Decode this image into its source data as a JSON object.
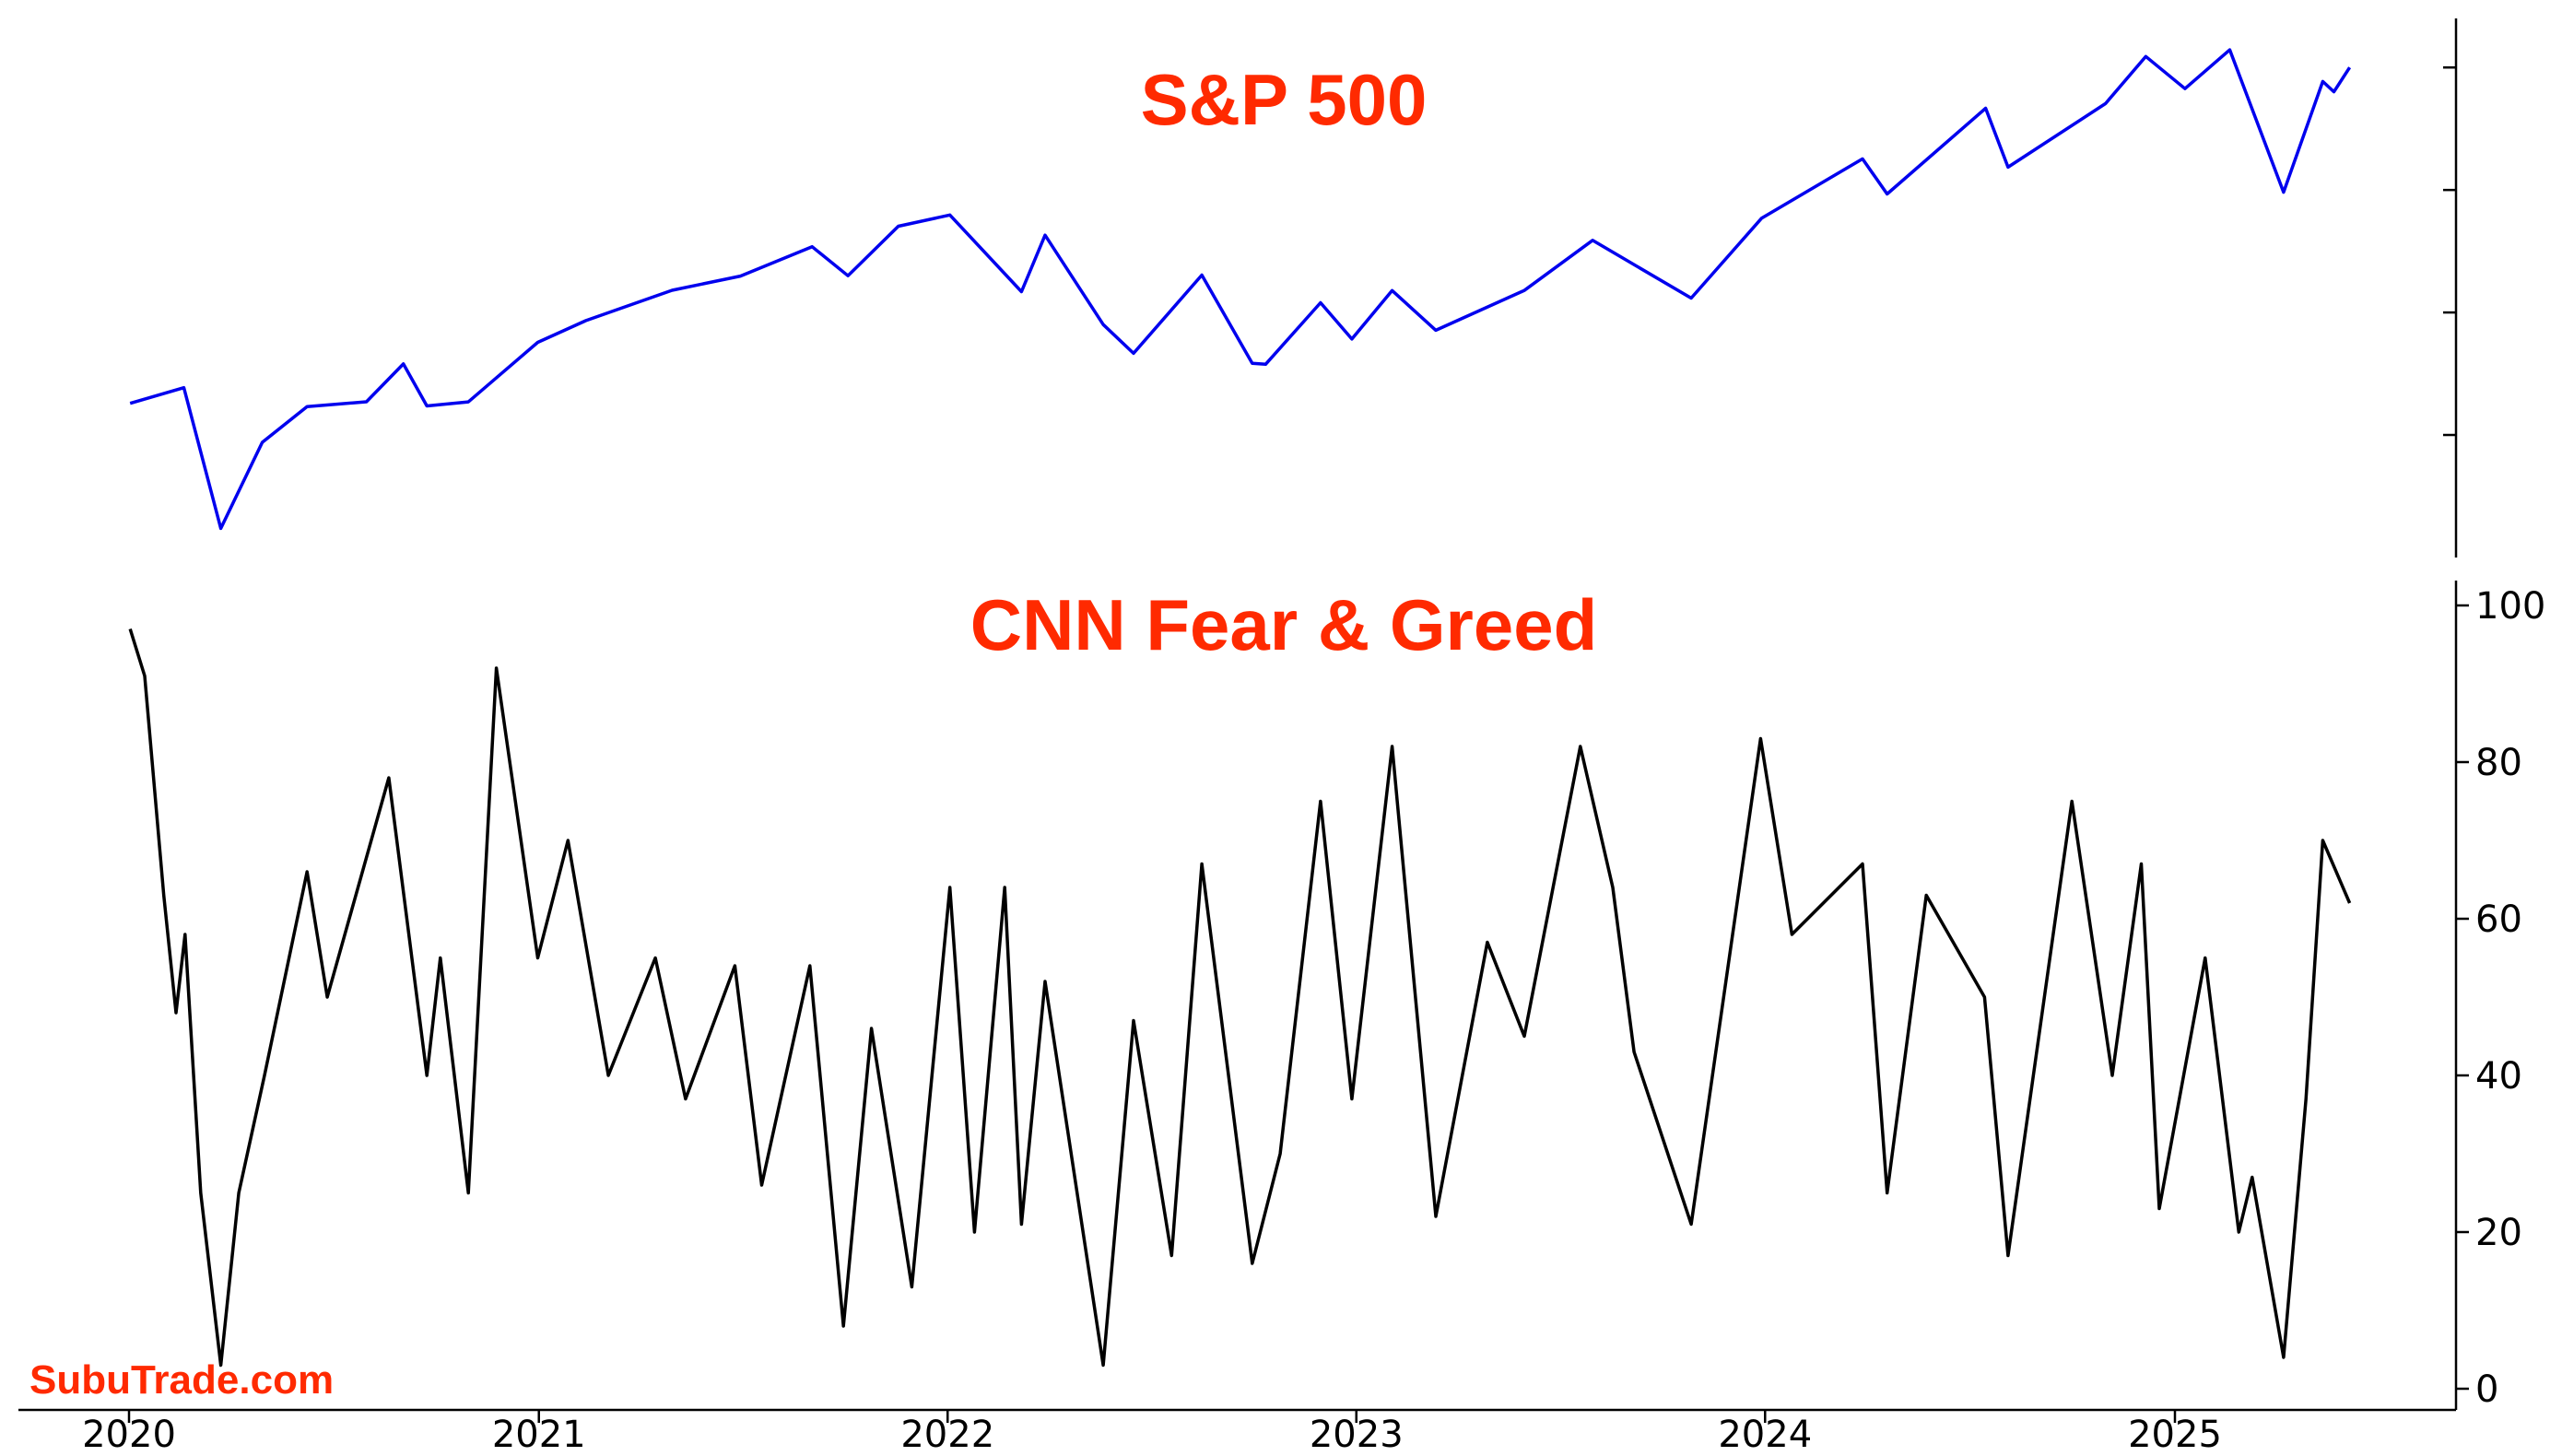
{
  "watermark": "SubuTrade.com",
  "colors": {
    "title": "#ff2a00",
    "sp500_line": "#0000ee",
    "fg_line": "#000000",
    "watermark": "#ff2a00"
  },
  "x_axis": {
    "range": [
      "2020-01-01",
      "2025-08-01"
    ],
    "ticks": [
      {
        "date": "2020-01-01",
        "label": "2020"
      },
      {
        "date": "2021-01-01",
        "label": "2021"
      },
      {
        "date": "2022-01-01",
        "label": "2022"
      },
      {
        "date": "2023-01-01",
        "label": "2023"
      },
      {
        "date": "2024-01-01",
        "label": "2024"
      },
      {
        "date": "2025-01-01",
        "label": "2025"
      }
    ]
  },
  "chart_data": [
    {
      "type": "line",
      "title": "S&P 500",
      "y_axis_side": "right",
      "y_tick_labels_shown": false,
      "ylim": [
        2150,
        6250
      ],
      "y_ticks": [
        3000,
        4000,
        5000,
        6000
      ],
      "series": [
        {
          "color": "#0000ee",
          "points": [
            [
              "2020-01-02",
              3258
            ],
            [
              "2020-02-19",
              3386
            ],
            [
              "2020-03-23",
              2237
            ],
            [
              "2020-04-29",
              2940
            ],
            [
              "2020-06-08",
              3232
            ],
            [
              "2020-07-31",
              3271
            ],
            [
              "2020-09-02",
              3580
            ],
            [
              "2020-09-23",
              3237
            ],
            [
              "2020-10-30",
              3270
            ],
            [
              "2020-12-31",
              3756
            ],
            [
              "2021-02-12",
              3934
            ],
            [
              "2021-04-30",
              4181
            ],
            [
              "2021-06-30",
              4297
            ],
            [
              "2021-09-02",
              4537
            ],
            [
              "2021-10-04",
              4300
            ],
            [
              "2021-11-18",
              4704
            ],
            [
              "2022-01-03",
              4796
            ],
            [
              "2022-03-08",
              4170
            ],
            [
              "2022-03-29",
              4631
            ],
            [
              "2022-05-20",
              3901
            ],
            [
              "2022-06-16",
              3667
            ],
            [
              "2022-08-16",
              4305
            ],
            [
              "2022-09-30",
              3585
            ],
            [
              "2022-10-12",
              3577
            ],
            [
              "2022-11-30",
              4080
            ],
            [
              "2022-12-28",
              3783
            ],
            [
              "2023-02-02",
              4179
            ],
            [
              "2023-03-13",
              3855
            ],
            [
              "2023-05-31",
              4180
            ],
            [
              "2023-07-31",
              4589
            ],
            [
              "2023-10-27",
              4117
            ],
            [
              "2023-12-29",
              4770
            ],
            [
              "2024-03-28",
              5254
            ],
            [
              "2024-04-19",
              4967
            ],
            [
              "2024-07-16",
              5667
            ],
            [
              "2024-08-05",
              5186
            ],
            [
              "2024-10-31",
              5705
            ],
            [
              "2024-12-06",
              6090
            ],
            [
              "2025-01-10",
              5827
            ],
            [
              "2025-02-19",
              6144
            ],
            [
              "2025-04-08",
              4982
            ],
            [
              "2025-05-13",
              5886
            ],
            [
              "2025-05-23",
              5802
            ],
            [
              "2025-06-06",
              6000
            ]
          ]
        }
      ]
    },
    {
      "type": "line",
      "title": "CNN Fear & Greed",
      "y_axis_side": "right",
      "ylim": [
        -2,
        102
      ],
      "y_ticks": [
        0,
        20,
        40,
        60,
        80,
        100
      ],
      "y_tick_labels": [
        "0",
        "20",
        "40",
        "60",
        "80",
        "100"
      ],
      "series": [
        {
          "color": "#000000",
          "points": [
            [
              "2020-01-02",
              97
            ],
            [
              "2020-01-15",
              91
            ],
            [
              "2020-02-01",
              63
            ],
            [
              "2020-02-12",
              48
            ],
            [
              "2020-02-20",
              58
            ],
            [
              "2020-03-05",
              25
            ],
            [
              "2020-03-23",
              3
            ],
            [
              "2020-04-08",
              25
            ],
            [
              "2020-05-01",
              40
            ],
            [
              "2020-06-08",
              66
            ],
            [
              "2020-06-26",
              50
            ],
            [
              "2020-08-20",
              78
            ],
            [
              "2020-09-23",
              40
            ],
            [
              "2020-10-05",
              55
            ],
            [
              "2020-10-30",
              25
            ],
            [
              "2020-11-24",
              92
            ],
            [
              "2020-12-31",
              55
            ],
            [
              "2021-01-27",
              70
            ],
            [
              "2021-03-04",
              40
            ],
            [
              "2021-04-15",
              55
            ],
            [
              "2021-05-12",
              37
            ],
            [
              "2021-06-25",
              54
            ],
            [
              "2021-07-19",
              26
            ],
            [
              "2021-08-31",
              54
            ],
            [
              "2021-09-30",
              8
            ],
            [
              "2021-10-25",
              46
            ],
            [
              "2021-11-30",
              13
            ],
            [
              "2022-01-03",
              64
            ],
            [
              "2022-01-25",
              20
            ],
            [
              "2022-02-21",
              64
            ],
            [
              "2022-03-08",
              21
            ],
            [
              "2022-03-29",
              52
            ],
            [
              "2022-05-20",
              3
            ],
            [
              "2022-06-16",
              47
            ],
            [
              "2022-07-20",
              17
            ],
            [
              "2022-08-16",
              67
            ],
            [
              "2022-09-30",
              16
            ],
            [
              "2022-10-25",
              30
            ],
            [
              "2022-11-30",
              75
            ],
            [
              "2022-12-28",
              37
            ],
            [
              "2023-02-02",
              82
            ],
            [
              "2023-03-13",
              22
            ],
            [
              "2023-04-28",
              57
            ],
            [
              "2023-05-31",
              45
            ],
            [
              "2023-07-20",
              82
            ],
            [
              "2023-08-18",
              64
            ],
            [
              "2023-09-06",
              43
            ],
            [
              "2023-10-27",
              21
            ],
            [
              "2023-12-28",
              83
            ],
            [
              "2024-01-25",
              58
            ],
            [
              "2024-03-28",
              67
            ],
            [
              "2024-04-19",
              25
            ],
            [
              "2024-05-24",
              63
            ],
            [
              "2024-07-15",
              50
            ],
            [
              "2024-08-05",
              17
            ],
            [
              "2024-10-01",
              75
            ],
            [
              "2024-11-06",
              40
            ],
            [
              "2024-12-02",
              67
            ],
            [
              "2024-12-18",
              23
            ],
            [
              "2025-01-28",
              55
            ],
            [
              "2025-02-27",
              20
            ],
            [
              "2025-03-11",
              27
            ],
            [
              "2025-04-08",
              4
            ],
            [
              "2025-04-28",
              37
            ],
            [
              "2025-05-13",
              70
            ],
            [
              "2025-06-06",
              62
            ]
          ]
        }
      ]
    }
  ]
}
